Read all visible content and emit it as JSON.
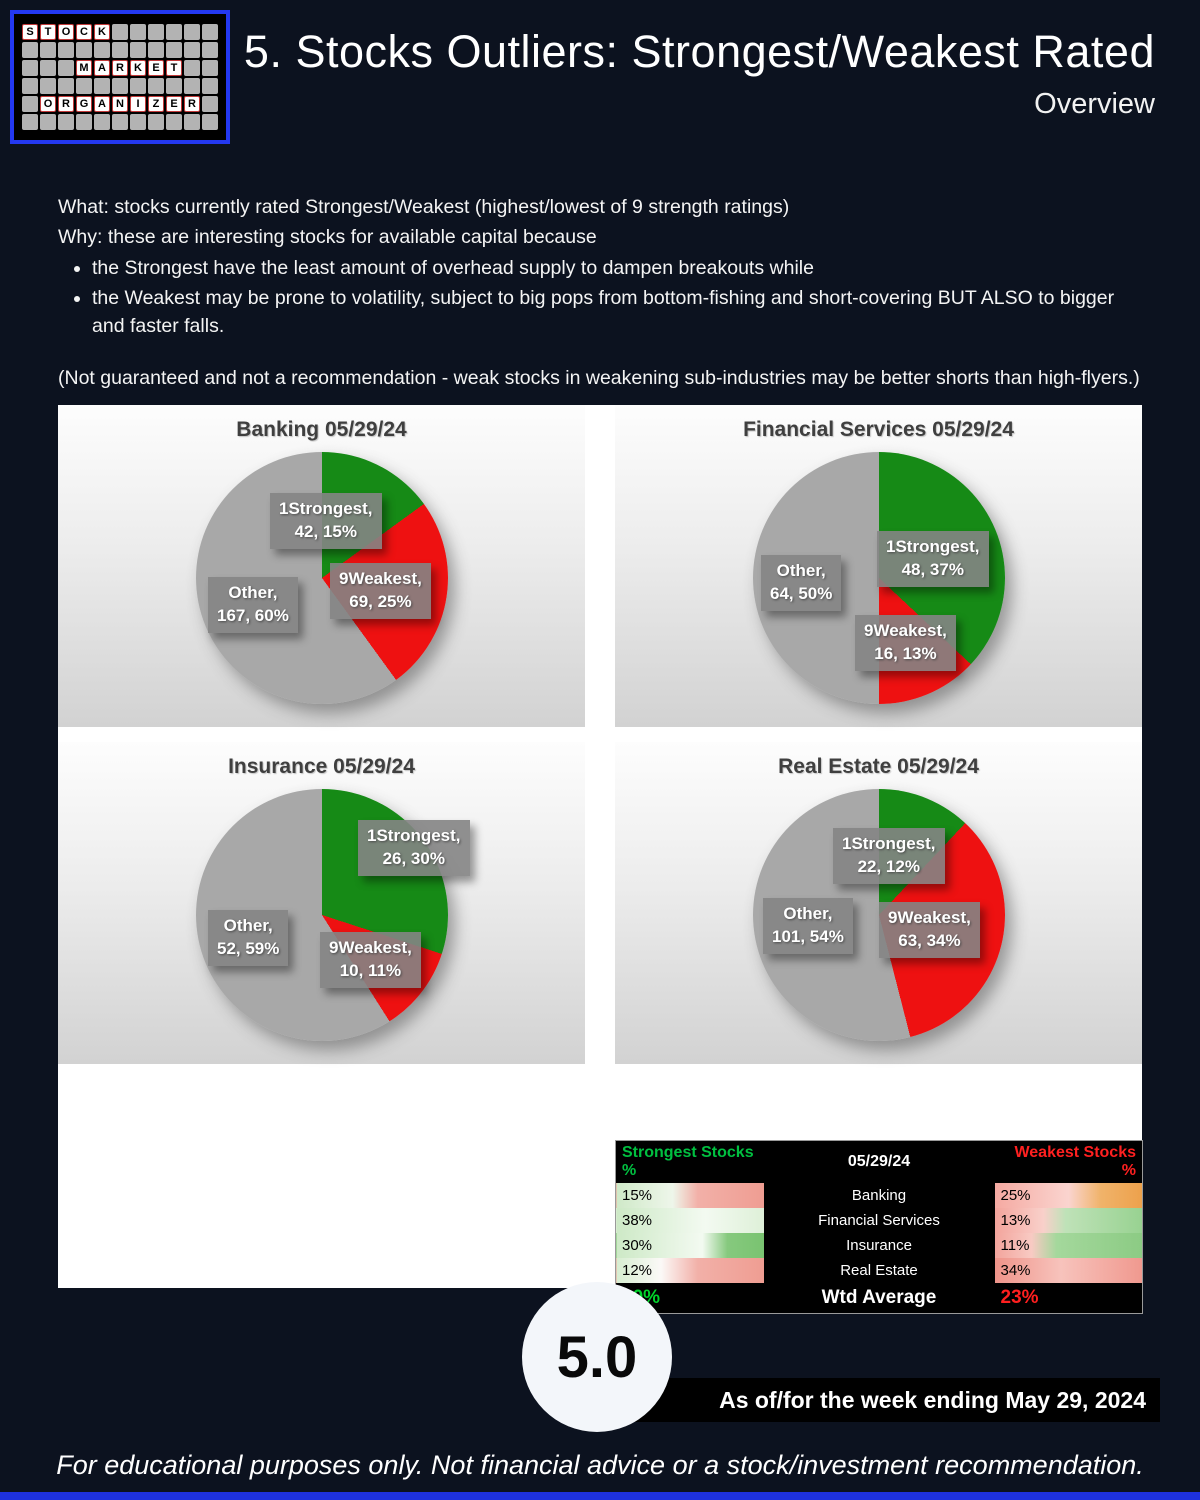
{
  "page": {
    "title": "5. Stocks Outliers: Strongest/Weakest Rated",
    "subtitle": "Overview",
    "badge": "5.0",
    "as_of": "As of/for the week ending May 29, 2024",
    "footer": "For educational purposes only. Not financial advice or a stock/investment recommendation."
  },
  "logo": {
    "words": [
      "STOCK",
      "MARKET",
      "ORGANIZER"
    ]
  },
  "intro": {
    "what": "What: stocks currently rated Strongest/Weakest (highest/lowest of 9 strength ratings)",
    "why": "Why: these are interesting stocks for available capital because",
    "bullets": [
      "the Strongest have the least amount of overhead supply to dampen breakouts while",
      "the Weakest may be prone to volatility, subject to big pops from bottom-fishing and short-covering BUT ALSO to bigger and faster falls."
    ],
    "note": "(Not guaranteed and not a recommendation - weak stocks in weakening sub-industries may be better shorts than high-flyers.)"
  },
  "colors": {
    "strongest_green": "#168a16",
    "weakest_red": "#ee1111",
    "other_gray": "#a8a8a8",
    "table_green": "#00c040",
    "table_red": "#ff2020"
  },
  "chart_data": [
    {
      "type": "pie",
      "title": "Banking 05/29/24",
      "slices": [
        {
          "label": "1Strongest",
          "count": 42,
          "pct": 15,
          "color": "#168a16"
        },
        {
          "label": "9Weakest",
          "count": 69,
          "pct": 25,
          "color": "#ee1111"
        },
        {
          "label": "Other",
          "count": 167,
          "pct": 60,
          "color": "#a8a8a8"
        }
      ]
    },
    {
      "type": "pie",
      "title": "Financial Services 05/29/24",
      "slices": [
        {
          "label": "1Strongest",
          "count": 48,
          "pct": 37,
          "color": "#168a16"
        },
        {
          "label": "9Weakest",
          "count": 16,
          "pct": 13,
          "color": "#ee1111"
        },
        {
          "label": "Other",
          "count": 64,
          "pct": 50,
          "color": "#a8a8a8"
        }
      ]
    },
    {
      "type": "pie",
      "title": "Insurance 05/29/24",
      "slices": [
        {
          "label": "1Strongest",
          "count": 26,
          "pct": 30,
          "color": "#168a16"
        },
        {
          "label": "9Weakest",
          "count": 10,
          "pct": 11,
          "color": "#ee1111"
        },
        {
          "label": "Other",
          "count": 52,
          "pct": 59,
          "color": "#a8a8a8"
        }
      ]
    },
    {
      "type": "pie",
      "title": "Real Estate 05/29/24",
      "slices": [
        {
          "label": "1Strongest",
          "count": 22,
          "pct": 12,
          "color": "#168a16"
        },
        {
          "label": "9Weakest",
          "count": 63,
          "pct": 34,
          "color": "#ee1111"
        },
        {
          "label": "Other",
          "count": 101,
          "pct": 54,
          "color": "#a8a8a8"
        }
      ]
    }
  ],
  "table": {
    "headers": {
      "left": "Strongest Stocks %",
      "mid": "05/29/24",
      "right": "Weakest Stocks %"
    },
    "rows": [
      {
        "strongest": "15%",
        "sector": "Banking",
        "weakest": "25%"
      },
      {
        "strongest": "38%",
        "sector": "Financial Services",
        "weakest": "13%"
      },
      {
        "strongest": "30%",
        "sector": "Insurance",
        "weakest": "11%"
      },
      {
        "strongest": "12%",
        "sector": "Real Estate",
        "weakest": "34%"
      }
    ],
    "total": {
      "strongest": "20%",
      "sector": "Wtd Average",
      "weakest": "23%"
    }
  }
}
